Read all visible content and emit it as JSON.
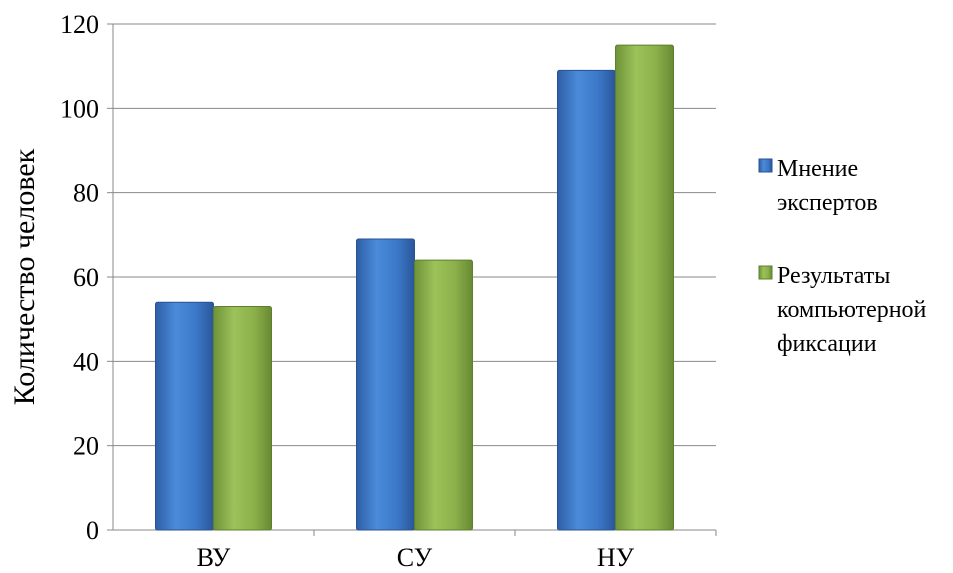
{
  "chart_data": {
    "type": "bar",
    "title": "",
    "xlabel": "",
    "ylabel": "Количество человек",
    "ylim": [
      0,
      120
    ],
    "yticks": [
      0,
      20,
      40,
      60,
      80,
      100,
      120
    ],
    "categories": [
      "ВУ",
      "СУ",
      "НУ"
    ],
    "series": [
      {
        "name": "Мнение экспертов",
        "values": [
          54,
          69,
          109
        ],
        "color": "#3C78C8"
      },
      {
        "name": "Результаты компьютерной фиксации",
        "values": [
          53,
          64,
          115
        ],
        "color": "#8CB04A"
      }
    ],
    "legend": {
      "placement": "right",
      "items": [
        {
          "lines": [
            "Мнение",
            "экспертов"
          ]
        },
        {
          "lines": [
            "Результаты",
            "компьютерной",
            "фиксации"
          ]
        }
      ]
    },
    "grid": true
  }
}
